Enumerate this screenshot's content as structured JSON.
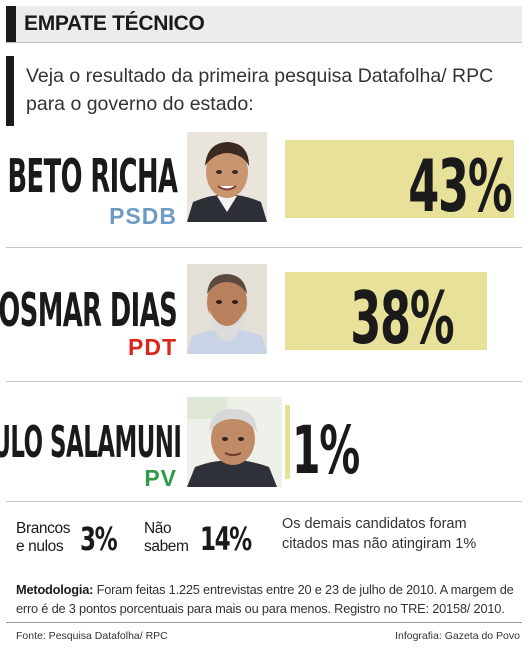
{
  "header": {
    "title": "EMPATE TÉCNICO"
  },
  "intro": {
    "text": "Veja o resultado da primeira pesquisa Datafolha/ RPC para o governo do estado:"
  },
  "colors": {
    "bar": "#e8e19a",
    "psdb": "#6e9ac6",
    "pdt": "#d9251d",
    "pv": "#2f9a47",
    "text": "#1a1a1a"
  },
  "chart_data": {
    "type": "bar",
    "orientation": "horizontal",
    "title": "EMPATE TÉCNICO",
    "unit": "%",
    "categories": [
      "BETO RICHA",
      "OSMAR DIAS",
      "PAULO SALAMUNI"
    ],
    "values": [
      43,
      38,
      1
    ],
    "labels": [
      "43%",
      "38%",
      "1%"
    ],
    "parties": [
      "PSDB",
      "PDT",
      "PV"
    ],
    "party_colors": [
      "#6e9ac6",
      "#d9251d",
      "#2f9a47"
    ],
    "photo_icons": [
      "beto-richa-photo",
      "osmar-dias-photo",
      "paulo-salamuni-photo"
    ],
    "extra": [
      {
        "label": "Brancos e nulos",
        "value": 3,
        "display": "3%"
      },
      {
        "label": "Não sabem",
        "value": 14,
        "display": "14%"
      }
    ]
  },
  "others": {
    "text": "Os demais candidatos foram citados mas não atingiram 1%"
  },
  "methodology": {
    "label": "Metodologia:",
    "text": "Foram feitas 1.225 entrevistas entre 20 e 23 de julho de 2010. A margem de erro é de 3 pontos porcentuais para mais ou para menos. Registro no TRE: 20158/ 2010."
  },
  "footer": {
    "source": "Fonte: Pesquisa Datafolha/ RPC",
    "credit": "Infografia: Gazeta do Povo"
  }
}
